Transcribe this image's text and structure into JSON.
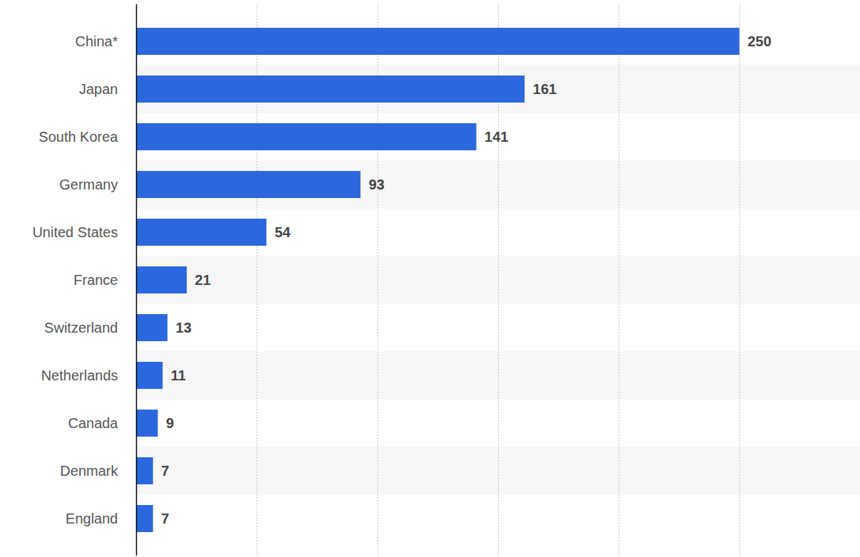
{
  "chart_data": {
    "type": "bar",
    "orientation": "horizontal",
    "categories": [
      "China*",
      "Japan",
      "South Korea",
      "Germany",
      "United States",
      "France",
      "Switzerland",
      "Netherlands",
      "Canada",
      "Denmark",
      "England"
    ],
    "values": [
      250,
      161,
      141,
      93,
      54,
      21,
      13,
      11,
      9,
      7,
      7
    ],
    "color": "#2b67dd",
    "xlim": [
      0,
      300
    ],
    "xticks": [
      0,
      50,
      100,
      150,
      200,
      250,
      300
    ],
    "grid": true,
    "data_labels": true,
    "tick_labels": "y"
  }
}
